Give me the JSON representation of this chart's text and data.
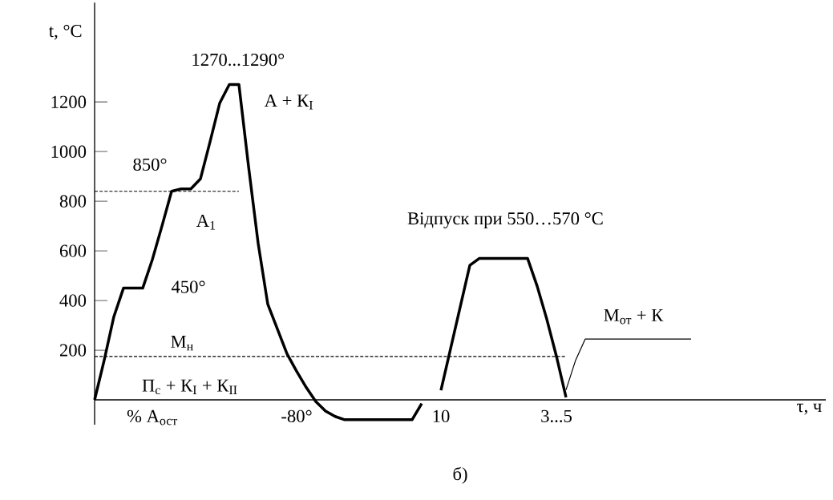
{
  "chart_data": {
    "type": "line",
    "xlabel": "τ, ч",
    "ylabel": "t, °C",
    "categories": [
      null,
      null,
      null,
      null,
      null,
      null,
      "% А$_{ост}$",
      null,
      null,
      null,
      null,
      null,
      null,
      null,
      null,
      null,
      null,
      null,
      null,
      null,
      null,
      "-80°",
      null,
      null,
      null,
      null,
      null,
      null,
      null,
      null,
      null,
      null,
      null,
      null,
      null,
      null,
      "10",
      null,
      null,
      null,
      null,
      null,
      null,
      null,
      null,
      null,
      null,
      null,
      "3...5",
      null,
      null,
      null,
      null,
      null,
      null,
      null,
      null,
      null,
      null,
      null,
      null,
      null,
      null,
      null,
      null,
      null,
      null,
      null,
      null,
      null,
      null,
      null,
      null,
      null,
      null,
      null,
      null
    ],
    "ylim": [
      -100,
      1600
    ],
    "yticks": [
      200,
      400,
      600,
      800,
      1000,
      1200
    ],
    "series": [
      {
        "color": "#000000",
        "line_style": "solid",
        "values": [
          0,
          160,
          335,
          450,
          450,
          450,
          565,
          700,
          840,
          850,
          850,
          890,
          1040,
          1195,
          1270,
          1270,
          940,
          630,
          385,
          285,
          185,
          115,
          50,
          -7,
          -45,
          -67,
          -80,
          -80,
          -80,
          -80,
          -80,
          -80,
          -80,
          -80,
          -15,
          null,
          38,
          206,
          374,
          542,
          570,
          570,
          570,
          570,
          570,
          570,
          458,
          325,
          176,
          10,
          null,
          null,
          null,
          null,
          null,
          null,
          null,
          null,
          null,
          null,
          null,
          null,
          null,
          null,
          null,
          null,
          null,
          null,
          null,
          null,
          null,
          null,
          null,
          null,
          null,
          null,
          null
        ]
      },
      {
        "color": "#000000",
        "line_style": "dashed",
        "values": [
          840,
          840,
          840,
          840,
          840,
          840,
          840,
          840,
          840,
          840,
          840,
          840,
          840,
          840,
          840,
          840,
          null,
          null,
          null,
          null,
          null,
          null,
          null,
          null,
          null,
          null,
          null,
          null,
          null,
          null,
          null,
          null,
          null,
          null,
          null,
          null,
          null,
          null,
          null,
          null,
          null,
          null,
          null,
          null,
          null,
          null,
          null,
          null,
          null,
          null,
          null,
          null,
          null,
          null,
          null,
          null,
          null,
          null,
          null,
          null,
          null,
          null,
          null,
          null,
          null,
          null,
          null,
          null,
          null,
          null,
          null,
          null,
          null,
          null,
          null,
          null,
          null
        ]
      },
      {
        "color": "#000000",
        "line_style": "dashed",
        "values": [
          175,
          175,
          175,
          175,
          175,
          175,
          175,
          175,
          175,
          175,
          175,
          175,
          175,
          175,
          175,
          175,
          175,
          175,
          175,
          175,
          175,
          175,
          175,
          175,
          175,
          175,
          175,
          175,
          175,
          175,
          175,
          175,
          175,
          175,
          175,
          175,
          175,
          175,
          175,
          175,
          175,
          175,
          175,
          175,
          175,
          175,
          175,
          175,
          175,
          175,
          null,
          null,
          null,
          null,
          null,
          null,
          null,
          null,
          null,
          null,
          null,
          null,
          null,
          null,
          null,
          null,
          null,
          null,
          null,
          null,
          null,
          null,
          null,
          null,
          null,
          null,
          null
        ]
      },
      {
        "color": "#000000",
        "line_style": "solid",
        "values": [
          null,
          null,
          null,
          null,
          null,
          null,
          null,
          null,
          null,
          null,
          null,
          null,
          null,
          null,
          null,
          null,
          null,
          null,
          null,
          null,
          null,
          null,
          null,
          null,
          null,
          null,
          null,
          null,
          null,
          null,
          null,
          null,
          null,
          null,
          null,
          null,
          null,
          null,
          null,
          null,
          null,
          null,
          null,
          null,
          null,
          null,
          null,
          null,
          null,
          40,
          160,
          245,
          245,
          245,
          245,
          245,
          245,
          245,
          245,
          245,
          245,
          245,
          245,
          null,
          null,
          null,
          null,
          null,
          null,
          null,
          null,
          null,
          null,
          null,
          null,
          null,
          null
        ]
      }
    ],
    "annotations": [
      "1270...1290°",
      "А + К$_{I}$",
      "850°",
      "А$_{1}$",
      "450°",
      "М$_{н}$",
      "П$_{с}$ + К$_{I}$ + К$_{II}$",
      "Відпуск при 550…570 °C",
      "М$_{от}$ + К",
      "б)"
    ]
  }
}
